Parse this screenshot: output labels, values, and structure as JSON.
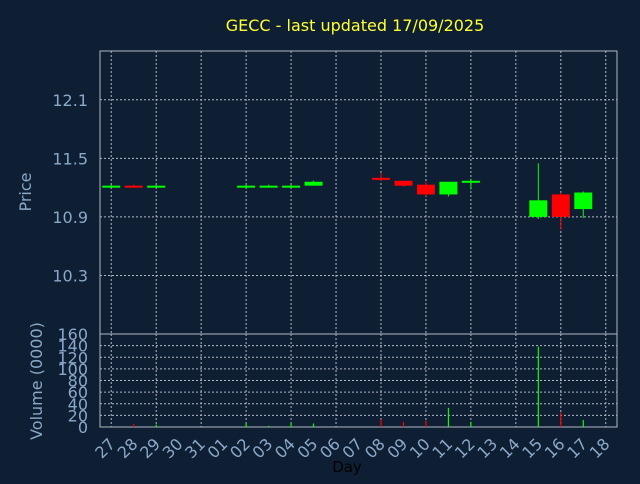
{
  "colors": {
    "background": "#0f1f33",
    "axis_text": "#8aa8c8",
    "title": "#ffff33",
    "grid": "#b0b8c4",
    "up": "#00ff00",
    "down": "#ff0000"
  },
  "chart_data": [
    {
      "type": "candlestick",
      "title": "GECC - last updated 17/09/2025",
      "ylabel": "Price",
      "ylim": [
        9.7,
        12.6
      ],
      "yticks": [
        10.3,
        10.9,
        11.5,
        12.1
      ],
      "grid": true,
      "categories": [
        "27",
        "28",
        "29",
        "30",
        "31",
        "01",
        "02",
        "03",
        "04",
        "05",
        "06",
        "07",
        "08",
        "09",
        "10",
        "11",
        "12",
        "13",
        "14",
        "15",
        "16",
        "17",
        "18"
      ],
      "candles": [
        {
          "x": "27",
          "open": 11.22,
          "high": 11.23,
          "low": 11.21,
          "close": 11.22
        },
        {
          "x": "28",
          "open": 11.22,
          "high": 11.23,
          "low": 11.2,
          "close": 11.21
        },
        {
          "x": "29",
          "open": 11.21,
          "high": 11.23,
          "low": 11.2,
          "close": 11.22
        },
        {
          "x": "02",
          "open": 11.21,
          "high": 11.23,
          "low": 11.19,
          "close": 11.22
        },
        {
          "x": "03",
          "open": 11.21,
          "high": 11.23,
          "low": 11.2,
          "close": 11.22
        },
        {
          "x": "04",
          "open": 11.21,
          "high": 11.23,
          "low": 11.2,
          "close": 11.22
        },
        {
          "x": "05",
          "open": 11.22,
          "high": 11.27,
          "low": 11.22,
          "close": 11.26
        },
        {
          "x": "08",
          "open": 11.3,
          "high": 11.35,
          "low": 11.27,
          "close": 11.28
        },
        {
          "x": "09",
          "open": 11.27,
          "high": 11.27,
          "low": 11.21,
          "close": 11.22
        },
        {
          "x": "10",
          "open": 11.23,
          "high": 11.26,
          "low": 11.11,
          "close": 11.13
        },
        {
          "x": "11",
          "open": 11.13,
          "high": 11.26,
          "low": 11.11,
          "close": 11.26
        },
        {
          "x": "12",
          "open": 11.26,
          "high": 11.29,
          "low": 11.18,
          "close": 11.27
        },
        {
          "x": "15",
          "open": 10.9,
          "high": 11.45,
          "low": 10.88,
          "close": 11.07
        },
        {
          "x": "16",
          "open": 11.13,
          "high": 11.15,
          "low": 10.77,
          "close": 10.9
        },
        {
          "x": "17",
          "open": 10.98,
          "high": 11.16,
          "low": 10.89,
          "close": 11.15
        }
      ]
    },
    {
      "type": "bar",
      "ylabel": "Volume (0000)",
      "xlabel": "Day",
      "ylim": [
        0,
        160
      ],
      "yticks": [
        0,
        20,
        40,
        60,
        80,
        100,
        120,
        140,
        160
      ],
      "grid": true,
      "categories": [
        "27",
        "28",
        "29",
        "30",
        "31",
        "01",
        "02",
        "03",
        "04",
        "05",
        "06",
        "07",
        "08",
        "09",
        "10",
        "11",
        "12",
        "13",
        "14",
        "15",
        "16",
        "17",
        "18"
      ],
      "values": [
        {
          "x": "27",
          "value": 1,
          "dir": "up"
        },
        {
          "x": "28",
          "value": 5,
          "dir": "down"
        },
        {
          "x": "29",
          "value": 4,
          "dir": "up"
        },
        {
          "x": "02",
          "value": 6,
          "dir": "up"
        },
        {
          "x": "03",
          "value": 2,
          "dir": "up"
        },
        {
          "x": "04",
          "value": 7,
          "dir": "up"
        },
        {
          "x": "05",
          "value": 6,
          "dir": "up"
        },
        {
          "x": "08",
          "value": 13,
          "dir": "down"
        },
        {
          "x": "09",
          "value": 9,
          "dir": "down"
        },
        {
          "x": "10",
          "value": 11,
          "dir": "down"
        },
        {
          "x": "11",
          "value": 33,
          "dir": "up"
        },
        {
          "x": "12",
          "value": 9,
          "dir": "up"
        },
        {
          "x": "15",
          "value": 138,
          "dir": "up"
        },
        {
          "x": "16",
          "value": 25,
          "dir": "down"
        },
        {
          "x": "17",
          "value": 12,
          "dir": "up"
        }
      ]
    }
  ]
}
